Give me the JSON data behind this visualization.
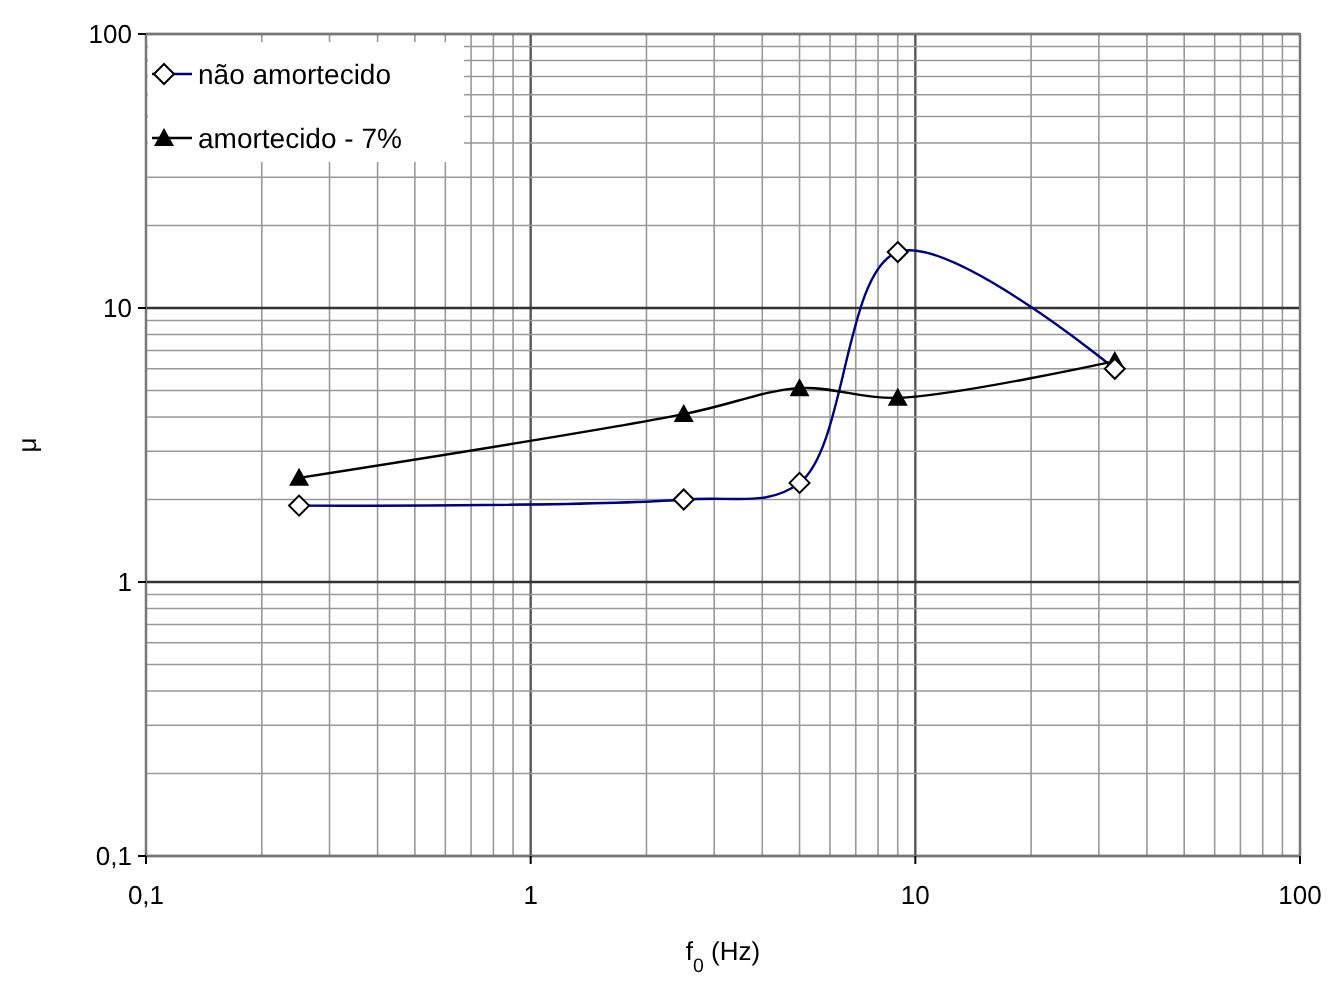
{
  "chart_data": {
    "type": "line",
    "xlabel": "f$_{0}$ (Hz)",
    "ylabel": "μ",
    "log": "xy",
    "grid": true,
    "legend": "top left",
    "line_style": "solid",
    "xlim": [
      0.1,
      100
    ],
    "ylim": [
      0.1,
      100
    ],
    "xticks": [
      {
        "value": 0.1,
        "label": "0,1"
      },
      {
        "value": 0.2,
        "label": null
      },
      {
        "value": 0.3,
        "label": null
      },
      {
        "value": 0.4,
        "label": null
      },
      {
        "value": 0.5,
        "label": null
      },
      {
        "value": 0.6,
        "label": null
      },
      {
        "value": 0.7,
        "label": null
      },
      {
        "value": 0.8,
        "label": null
      },
      {
        "value": 0.9,
        "label": null
      },
      1,
      {
        "value": 2,
        "label": null
      },
      {
        "value": 3,
        "label": null
      },
      {
        "value": 4,
        "label": null
      },
      {
        "value": 5,
        "label": null
      },
      {
        "value": 6,
        "label": null
      },
      {
        "value": 7,
        "label": null
      },
      {
        "value": 8,
        "label": null
      },
      {
        "value": 9,
        "label": null
      },
      10,
      {
        "value": 20,
        "label": null
      },
      {
        "value": 30,
        "label": null
      },
      {
        "value": 40,
        "label": null
      },
      {
        "value": 50,
        "label": null
      },
      {
        "value": 60,
        "label": null
      },
      {
        "value": 70,
        "label": null
      },
      {
        "value": 80,
        "label": null
      },
      {
        "value": 90,
        "label": null
      },
      100
    ],
    "yticks": [
      {
        "value": 0.1,
        "label": "0,1"
      },
      {
        "value": 0.2,
        "label": null
      },
      {
        "value": 0.3,
        "label": null
      },
      {
        "value": 0.4,
        "label": null
      },
      {
        "value": 0.5,
        "label": null
      },
      {
        "value": 0.6,
        "label": null
      },
      {
        "value": 0.7,
        "label": null
      },
      {
        "value": 0.8,
        "label": null
      },
      {
        "value": 0.9,
        "label": null
      },
      1,
      {
        "value": 2,
        "label": null
      },
      {
        "value": 3,
        "label": null
      },
      {
        "value": 4,
        "label": null
      },
      {
        "value": 5,
        "label": null
      },
      {
        "value": 6,
        "label": null
      },
      {
        "value": 7,
        "label": null
      },
      {
        "value": 8,
        "label": null
      },
      {
        "value": 9,
        "label": null
      },
      10,
      {
        "value": 20,
        "label": null
      },
      {
        "value": 30,
        "label": null
      },
      {
        "value": 40,
        "label": null
      },
      {
        "value": 50,
        "label": null
      },
      {
        "value": 60,
        "label": null
      },
      {
        "value": 70,
        "label": null
      },
      {
        "value": 80,
        "label": null
      },
      {
        "value": 90,
        "label": null
      },
      100
    ],
    "x": [
      0.25,
      2.5,
      5,
      9,
      33
    ],
    "series": [
      {
        "name": "não amortecido",
        "color": "#000080",
        "marker": "diamond",
        "values": [
          1.9,
          2.0,
          2.3,
          16,
          6.0
        ]
      },
      {
        "name": "amortecido - 7%",
        "color": "#000000",
        "marker": "triangle",
        "values": [
          2.4,
          4.1,
          5.1,
          4.7,
          6.4
        ]
      }
    ]
  }
}
